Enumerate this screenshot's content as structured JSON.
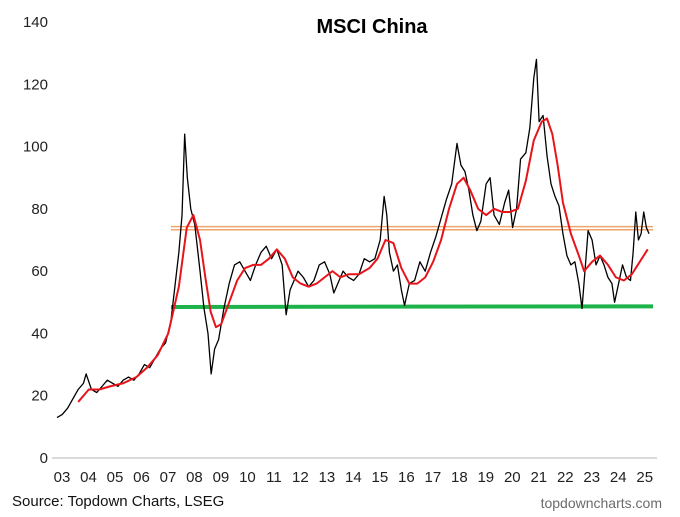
{
  "chart_data": {
    "type": "line",
    "title": "MSCI China",
    "xlabel": "",
    "ylabel": "",
    "x_tick_labels": [
      "03",
      "04",
      "05",
      "06",
      "07",
      "08",
      "09",
      "10",
      "11",
      "12",
      "13",
      "14",
      "15",
      "16",
      "17",
      "18",
      "19",
      "20",
      "21",
      "22",
      "23",
      "24",
      "25"
    ],
    "y_ticks": [
      0,
      20,
      40,
      60,
      80,
      100,
      120,
      140
    ],
    "xlim": [
      2003.0,
      2025.5
    ],
    "ylim": [
      0,
      140
    ],
    "grid": false,
    "legend": "none",
    "series": [
      {
        "role": "index",
        "color": "#000000",
        "points": [
          [
            2003.0,
            13
          ],
          [
            2003.2,
            14
          ],
          [
            2003.4,
            16
          ],
          [
            2003.6,
            19
          ],
          [
            2003.8,
            22
          ],
          [
            2004.0,
            24
          ],
          [
            2004.1,
            27
          ],
          [
            2004.3,
            22
          ],
          [
            2004.5,
            21
          ],
          [
            2004.7,
            23
          ],
          [
            2004.9,
            25
          ],
          [
            2005.1,
            24
          ],
          [
            2005.3,
            23
          ],
          [
            2005.5,
            25
          ],
          [
            2005.7,
            26
          ],
          [
            2005.9,
            25
          ],
          [
            2006.1,
            27
          ],
          [
            2006.3,
            30
          ],
          [
            2006.5,
            29
          ],
          [
            2006.7,
            32
          ],
          [
            2006.9,
            35
          ],
          [
            2007.1,
            37
          ],
          [
            2007.3,
            44
          ],
          [
            2007.45,
            55
          ],
          [
            2007.6,
            66
          ],
          [
            2007.72,
            78
          ],
          [
            2007.82,
            104
          ],
          [
            2007.92,
            90
          ],
          [
            2008.05,
            80
          ],
          [
            2008.2,
            75
          ],
          [
            2008.4,
            60
          ],
          [
            2008.55,
            48
          ],
          [
            2008.7,
            40
          ],
          [
            2008.82,
            27
          ],
          [
            2008.95,
            35
          ],
          [
            2009.1,
            38
          ],
          [
            2009.3,
            48
          ],
          [
            2009.5,
            56
          ],
          [
            2009.7,
            62
          ],
          [
            2009.9,
            63
          ],
          [
            2010.1,
            60
          ],
          [
            2010.3,
            57
          ],
          [
            2010.5,
            62
          ],
          [
            2010.7,
            66
          ],
          [
            2010.9,
            68
          ],
          [
            2011.1,
            64
          ],
          [
            2011.3,
            67
          ],
          [
            2011.5,
            62
          ],
          [
            2011.65,
            46
          ],
          [
            2011.8,
            54
          ],
          [
            2011.95,
            57
          ],
          [
            2012.1,
            60
          ],
          [
            2012.3,
            58
          ],
          [
            2012.5,
            55
          ],
          [
            2012.7,
            57
          ],
          [
            2012.9,
            62
          ],
          [
            2013.1,
            63
          ],
          [
            2013.3,
            59
          ],
          [
            2013.45,
            53
          ],
          [
            2013.6,
            56
          ],
          [
            2013.8,
            60
          ],
          [
            2014.0,
            58
          ],
          [
            2014.2,
            57
          ],
          [
            2014.4,
            59
          ],
          [
            2014.6,
            64
          ],
          [
            2014.8,
            63
          ],
          [
            2015.0,
            64
          ],
          [
            2015.2,
            70
          ],
          [
            2015.35,
            84
          ],
          [
            2015.45,
            78
          ],
          [
            2015.55,
            66
          ],
          [
            2015.7,
            60
          ],
          [
            2015.85,
            62
          ],
          [
            2016.0,
            54
          ],
          [
            2016.12,
            49
          ],
          [
            2016.3,
            56
          ],
          [
            2016.5,
            57
          ],
          [
            2016.7,
            63
          ],
          [
            2016.9,
            60
          ],
          [
            2017.1,
            66
          ],
          [
            2017.3,
            71
          ],
          [
            2017.5,
            77
          ],
          [
            2017.7,
            83
          ],
          [
            2017.9,
            88
          ],
          [
            2018.1,
            101
          ],
          [
            2018.25,
            94
          ],
          [
            2018.4,
            92
          ],
          [
            2018.55,
            86
          ],
          [
            2018.7,
            78
          ],
          [
            2018.85,
            73
          ],
          [
            2019.0,
            76
          ],
          [
            2019.2,
            88
          ],
          [
            2019.35,
            90
          ],
          [
            2019.5,
            78
          ],
          [
            2019.7,
            75
          ],
          [
            2019.9,
            82
          ],
          [
            2020.05,
            86
          ],
          [
            2020.2,
            74
          ],
          [
            2020.35,
            80
          ],
          [
            2020.5,
            96
          ],
          [
            2020.7,
            98
          ],
          [
            2020.85,
            106
          ],
          [
            2021.0,
            122
          ],
          [
            2021.1,
            128
          ],
          [
            2021.2,
            108
          ],
          [
            2021.35,
            110
          ],
          [
            2021.5,
            97
          ],
          [
            2021.65,
            88
          ],
          [
            2021.8,
            84
          ],
          [
            2021.95,
            81
          ],
          [
            2022.1,
            72
          ],
          [
            2022.25,
            65
          ],
          [
            2022.4,
            62
          ],
          [
            2022.55,
            63
          ],
          [
            2022.7,
            56
          ],
          [
            2022.82,
            48
          ],
          [
            2022.95,
            62
          ],
          [
            2023.05,
            73
          ],
          [
            2023.2,
            70
          ],
          [
            2023.35,
            62
          ],
          [
            2023.5,
            65
          ],
          [
            2023.65,
            62
          ],
          [
            2023.8,
            58
          ],
          [
            2023.95,
            56
          ],
          [
            2024.05,
            50
          ],
          [
            2024.2,
            56
          ],
          [
            2024.35,
            62
          ],
          [
            2024.5,
            58
          ],
          [
            2024.65,
            57
          ],
          [
            2024.75,
            66
          ],
          [
            2024.85,
            79
          ],
          [
            2024.95,
            70
          ],
          [
            2025.05,
            72
          ],
          [
            2025.15,
            79
          ],
          [
            2025.25,
            74
          ],
          [
            2025.35,
            72
          ]
        ]
      },
      {
        "role": "moving-average",
        "color": "#e8141b",
        "points": [
          [
            2003.8,
            18
          ],
          [
            2004.2,
            22
          ],
          [
            2004.6,
            22
          ],
          [
            2005.0,
            23
          ],
          [
            2005.5,
            24
          ],
          [
            2006.0,
            26
          ],
          [
            2006.4,
            29
          ],
          [
            2006.8,
            33
          ],
          [
            2007.2,
            40
          ],
          [
            2007.6,
            55
          ],
          [
            2007.9,
            74
          ],
          [
            2008.15,
            78
          ],
          [
            2008.4,
            70
          ],
          [
            2008.6,
            58
          ],
          [
            2008.8,
            47
          ],
          [
            2009.0,
            42
          ],
          [
            2009.2,
            43
          ],
          [
            2009.5,
            50
          ],
          [
            2009.8,
            57
          ],
          [
            2010.1,
            61
          ],
          [
            2010.4,
            62
          ],
          [
            2010.7,
            62
          ],
          [
            2011.0,
            64
          ],
          [
            2011.3,
            67
          ],
          [
            2011.6,
            64
          ],
          [
            2011.9,
            58
          ],
          [
            2012.2,
            56
          ],
          [
            2012.5,
            55
          ],
          [
            2012.8,
            56
          ],
          [
            2013.1,
            58
          ],
          [
            2013.4,
            60
          ],
          [
            2013.7,
            58
          ],
          [
            2014.0,
            59
          ],
          [
            2014.4,
            59
          ],
          [
            2014.8,
            61
          ],
          [
            2015.1,
            64
          ],
          [
            2015.4,
            70
          ],
          [
            2015.7,
            69
          ],
          [
            2016.0,
            61
          ],
          [
            2016.3,
            56
          ],
          [
            2016.6,
            56
          ],
          [
            2016.9,
            58
          ],
          [
            2017.2,
            63
          ],
          [
            2017.5,
            70
          ],
          [
            2017.8,
            80
          ],
          [
            2018.1,
            88
          ],
          [
            2018.35,
            90
          ],
          [
            2018.6,
            86
          ],
          [
            2018.9,
            80
          ],
          [
            2019.2,
            78
          ],
          [
            2019.5,
            80
          ],
          [
            2019.8,
            79
          ],
          [
            2020.1,
            79
          ],
          [
            2020.4,
            80
          ],
          [
            2020.7,
            89
          ],
          [
            2021.0,
            102
          ],
          [
            2021.3,
            108
          ],
          [
            2021.5,
            109
          ],
          [
            2021.7,
            104
          ],
          [
            2021.9,
            94
          ],
          [
            2022.1,
            82
          ],
          [
            2022.4,
            72
          ],
          [
            2022.7,
            65
          ],
          [
            2022.9,
            60
          ],
          [
            2023.2,
            63
          ],
          [
            2023.5,
            65
          ],
          [
            2023.8,
            62
          ],
          [
            2024.1,
            58
          ],
          [
            2024.4,
            57
          ],
          [
            2024.7,
            59
          ],
          [
            2025.0,
            63
          ],
          [
            2025.3,
            67
          ]
        ]
      },
      {
        "role": "resistance-line",
        "color": "#f0a46b",
        "points": [
          [
            2007.3,
            73.8
          ],
          [
            2025.5,
            73.8
          ]
        ]
      },
      {
        "role": "support-line",
        "color": "#1db34a",
        "points": [
          [
            2007.3,
            48.5
          ],
          [
            2025.5,
            48.7
          ]
        ]
      }
    ]
  },
  "footer": {
    "source": "Source: Topdown Charts, LSEG",
    "site": "topdowncharts.com"
  }
}
